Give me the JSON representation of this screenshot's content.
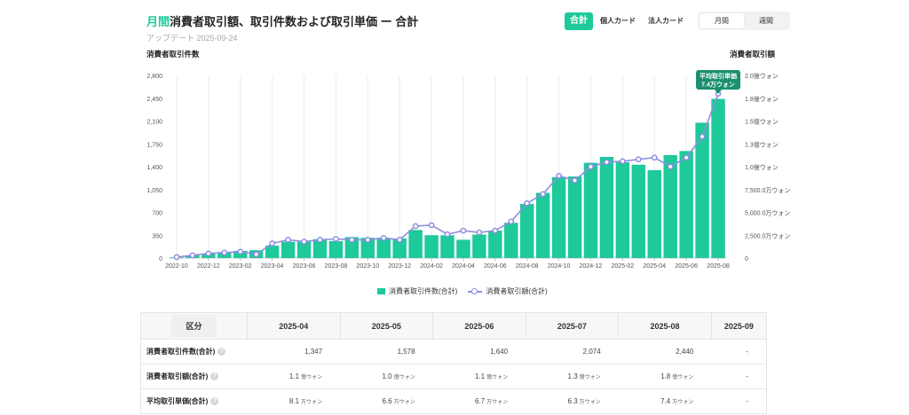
{
  "header": {
    "title_accent": "月間",
    "title_rest": "消費者取引額、取引件数および取引単価 ー 合計",
    "updated": "アップデート 2025-09-24"
  },
  "controls": {
    "pills": [
      "合計",
      "個人カード",
      "法人カード"
    ],
    "active_pill": 0,
    "segments": [
      "月間",
      "週間"
    ],
    "active_segment": 0
  },
  "colors": {
    "bar": "#1ec99a",
    "line": "#8f8ee0",
    "grid": "#ebebeb"
  },
  "chart_data": {
    "type": "bar",
    "ylabel_left": "消費者取引件数",
    "ylabel_right": "消費者取引額",
    "left_ticks": [
      "0",
      "350",
      "700",
      "1,050",
      "1,400",
      "1,750",
      "2,100",
      "2,450",
      "2,800"
    ],
    "right_ticks": [
      "0",
      "2,500.0万ウォン",
      "5,000.0万ウォン",
      "7,500.0万ウォン",
      "1.0億ウォン",
      "1.3億ウォン",
      "1.5億ウォン",
      "1.8億ウォン",
      "2.0億ウォン"
    ],
    "ylim_left": [
      0,
      2800
    ],
    "ylim_right": [
      0,
      2.0
    ],
    "x_ticks": [
      "2022-10",
      "2022-12",
      "2023-02",
      "2023-04",
      "2023-06",
      "2023-08",
      "2023-10",
      "2023-12",
      "2024-02",
      "2024-04",
      "2024-06",
      "2024-08",
      "2024-10",
      "2024-12",
      "2025-02",
      "2025-04",
      "2025-06",
      "2025-08"
    ],
    "categories": [
      "2022-10",
      "2022-11",
      "2022-12",
      "2023-01",
      "2023-02",
      "2023-03",
      "2023-04",
      "2023-05",
      "2023-06",
      "2023-07",
      "2023-08",
      "2023-09",
      "2023-10",
      "2023-11",
      "2023-12",
      "2024-01",
      "2024-02",
      "2024-03",
      "2024-04",
      "2024-05",
      "2024-06",
      "2024-07",
      "2024-08",
      "2024-09",
      "2024-10",
      "2024-11",
      "2024-12",
      "2025-01",
      "2025-02",
      "2025-03",
      "2025-04",
      "2025-05",
      "2025-06",
      "2025-07",
      "2025-08"
    ],
    "series": [
      {
        "name": "消費者取引件数(合計)",
        "type": "bar",
        "axis": "left",
        "values": [
          10,
          40,
          70,
          90,
          110,
          120,
          190,
          250,
          250,
          290,
          260,
          320,
          310,
          310,
          300,
          430,
          350,
          350,
          280,
          360,
          420,
          540,
          830,
          1000,
          1240,
          1250,
          1460,
          1550,
          1470,
          1430,
          1347,
          1578,
          1640,
          2074,
          2440
        ]
      },
      {
        "name": "消費者取引額(合計)",
        "type": "line",
        "axis": "right",
        "values": [
          0.01,
          0.03,
          0.05,
          0.06,
          0.07,
          0.04,
          0.16,
          0.2,
          0.18,
          0.2,
          0.21,
          0.2,
          0.2,
          0.22,
          0.2,
          0.35,
          0.36,
          0.26,
          0.3,
          0.28,
          0.3,
          0.4,
          0.6,
          0.7,
          0.9,
          0.85,
          1.0,
          1.05,
          1.06,
          1.08,
          1.1,
          1.0,
          1.1,
          1.33,
          1.8
        ]
      }
    ],
    "annotation": {
      "lines": [
        "平均取引単価",
        "7.4万ウォン"
      ],
      "index": 34
    },
    "legend_position": "bottom",
    "grid": true
  },
  "table": {
    "corner": "区分",
    "columns": [
      "2025-04",
      "2025-05",
      "2025-06",
      "2025-07",
      "2025-08",
      "2025-09"
    ],
    "rows": [
      {
        "label": "消費者取引件数(合計)",
        "cells": [
          {
            "v": "1,347",
            "u": ""
          },
          {
            "v": "1,578",
            "u": ""
          },
          {
            "v": "1,640",
            "u": ""
          },
          {
            "v": "2,074",
            "u": ""
          },
          {
            "v": "2,440",
            "u": ""
          },
          {
            "v": "-",
            "u": ""
          }
        ]
      },
      {
        "label": "消費者取引額(合計)",
        "cells": [
          {
            "v": "1.1",
            "u": "億ウォン"
          },
          {
            "v": "1.0",
            "u": "億ウォン"
          },
          {
            "v": "1.1",
            "u": "億ウォン"
          },
          {
            "v": "1.3",
            "u": "億ウォン"
          },
          {
            "v": "1.8",
            "u": "億ウォン"
          },
          {
            "v": "-",
            "u": ""
          }
        ]
      },
      {
        "label": "平均取引単価(合計)",
        "cells": [
          {
            "v": "8.1",
            "u": "万ウォン"
          },
          {
            "v": "6.6",
            "u": "万ウォン"
          },
          {
            "v": "6.7",
            "u": "万ウォン"
          },
          {
            "v": "6.3",
            "u": "万ウォン"
          },
          {
            "v": "7.4",
            "u": "万ウォン"
          },
          {
            "v": "-",
            "u": ""
          }
        ]
      }
    ]
  }
}
